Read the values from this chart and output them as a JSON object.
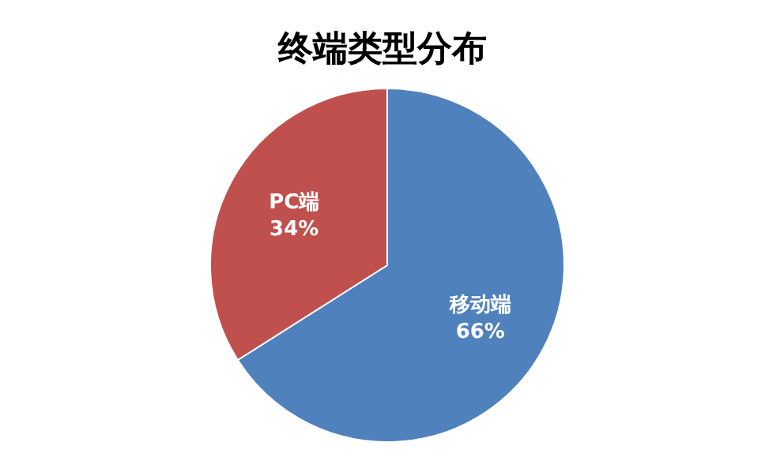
{
  "chart_data": {
    "type": "pie",
    "title": "终端类型分布",
    "categories": [
      "移动端",
      "PC端"
    ],
    "values": [
      66,
      34
    ],
    "colors": [
      "#4f81bd",
      "#c0504d"
    ],
    "value_labels": [
      "66%",
      "34%"
    ]
  }
}
